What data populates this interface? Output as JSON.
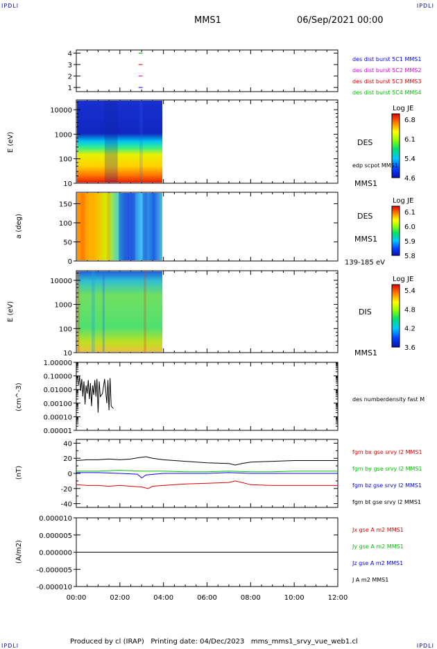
{
  "header": {
    "corner_tl": "IPDLI",
    "corner_tr": "IPDLI",
    "corner_bl": "IPDLI",
    "corner_br": "IPDLI",
    "spacecraft": "MMS1",
    "datetime": "06/Sep/2021 00:00"
  },
  "footer": {
    "produced": "Produced by cl (IRAP)",
    "printed": "Printing date: 04/Dec/2023",
    "file": "mms_mms1_srvy_vue_web1.cl"
  },
  "colors": {
    "blue": "#0000ff",
    "magenta": "#e000e0",
    "red": "#e00000",
    "green": "#00c000",
    "black": "#000000"
  },
  "chart_data": [
    {
      "type": "scatter",
      "panel": "availability",
      "y_ticks": [
        "4",
        "3",
        "2",
        "1"
      ],
      "legend": [
        {
          "label": "des dist burst 5C1 MMS1",
          "color": "#0000ff"
        },
        {
          "label": "des dist burst 5C2 MMS2",
          "color": "#e000e0"
        },
        {
          "label": "des dist burst 5C3 MMS3",
          "color": "#e00000"
        },
        {
          "label": "des dist burst 5C4 MMS4",
          "color": "#00c000"
        }
      ],
      "marks": [
        {
          "t": 2.95,
          "level": 1,
          "color": "#0000ff"
        },
        {
          "t": 2.95,
          "level": 2,
          "color": "#e000e0"
        },
        {
          "t": 2.95,
          "level": 3,
          "color": "#e00000"
        },
        {
          "t": 2.95,
          "level": 4,
          "color": "#00c000"
        }
      ]
    },
    {
      "type": "heatmap",
      "panel": "des-energy",
      "ylabel": "E (eV)",
      "y_scale": "log",
      "ylim": [
        10,
        25000
      ],
      "y_ticks": [
        "10000",
        "1000",
        "100",
        "10"
      ],
      "data_xlim": [
        0,
        3.95
      ],
      "label": "DES",
      "sublabel": "edp scpot MMS1",
      "instrument": "MMS1",
      "colorbar": {
        "title": "Log JE",
        "ticks": [
          "6.8",
          "6.1",
          "5.4",
          "4.6"
        ]
      }
    },
    {
      "type": "heatmap",
      "panel": "des-pitch",
      "ylabel": "a (deg)",
      "ylim": [
        0,
        180
      ],
      "y_ticks": [
        "150",
        "100",
        "50",
        "0"
      ],
      "data_xlim": [
        0,
        3.95
      ],
      "label": "DES",
      "instrument": "MMS1",
      "energy_range": "139-185 eV",
      "colorbar": {
        "title": "Log JE",
        "ticks": [
          "6.1",
          "6.0",
          "5.9",
          "5.8"
        ]
      }
    },
    {
      "type": "heatmap",
      "panel": "dis-energy",
      "ylabel": "E (eV)",
      "y_scale": "log",
      "ylim": [
        10,
        25000
      ],
      "y_ticks": [
        "10000",
        "1000",
        "100",
        "10"
      ],
      "data_xlim": [
        0,
        3.95
      ],
      "label": "DIS",
      "instrument": "MMS1",
      "colorbar": {
        "title": "Log JE",
        "ticks": [
          "5.4",
          "4.8",
          "4.2",
          "3.6"
        ]
      }
    },
    {
      "type": "line",
      "panel": "density",
      "ylabel": "(cm^-3)",
      "y_scale": "log",
      "ylim": [
        1e-05,
        1
      ],
      "y_ticks": [
        "1.00000",
        "0.10000",
        "0.01000",
        "0.00100",
        "0.00010",
        "0.00001"
      ],
      "series": [
        {
          "name": "des numberdensity fast M",
          "color": "#000000",
          "x": [
            0.1,
            0.15,
            0.2,
            0.25,
            0.3,
            0.35,
            0.4,
            0.45,
            0.5,
            0.55,
            0.6,
            0.65,
            0.7,
            0.75,
            0.8,
            0.85,
            0.9,
            0.95,
            1.0,
            1.05,
            1.1,
            1.2,
            1.3,
            1.4,
            1.45,
            1.5,
            1.55,
            1.6,
            1.7
          ],
          "y": [
            0.02,
            0.1,
            0.008,
            0.06,
            0.003,
            0.04,
            0.0008,
            0.02,
            0.005,
            0.05,
            0.002,
            0.03,
            0.0006,
            0.02,
            0.004,
            0.05,
            0.003,
            0.06,
            0.0002,
            0.04,
            0.003,
            0.005,
            0.06,
            0.001,
            0.05,
            0.0003,
            0.07,
            0.0006,
            0.0004
          ]
        }
      ]
    },
    {
      "type": "line",
      "panel": "magnetic-field",
      "ylabel": "(nT)",
      "ylim": [
        -45,
        45
      ],
      "y_ticks": [
        "40",
        "20",
        "0",
        "-20",
        "-40"
      ],
      "series": [
        {
          "name": "fgm bx gse srvy l2 MMS1",
          "color": "#e00000",
          "x": [
            0,
            0.5,
            1,
            1.5,
            2,
            2.5,
            3,
            3.3,
            3.5,
            4,
            5,
            6,
            7,
            7.3,
            7.6,
            8,
            9,
            10,
            11,
            12
          ],
          "y": [
            -15,
            -16,
            -16,
            -17,
            -16,
            -17,
            -18,
            -20,
            -17,
            -16,
            -14,
            -13,
            -12,
            -10,
            -12,
            -15,
            -16,
            -16,
            -16,
            -16
          ]
        },
        {
          "name": "fgm by gse srvy l2 MMS1",
          "color": "#00c000",
          "x": [
            0,
            1,
            2,
            3,
            4,
            5,
            6,
            7,
            8,
            9,
            10,
            11,
            12
          ],
          "y": [
            3,
            3,
            4,
            3,
            3,
            2,
            2,
            3,
            2,
            2,
            3,
            3,
            3
          ]
        },
        {
          "name": "fgm bz gse srvy l2 MMS1",
          "color": "#0000ff",
          "x": [
            0,
            1,
            2,
            2.8,
            3,
            3.2,
            4,
            5,
            6,
            7,
            8,
            9,
            10,
            11,
            12
          ],
          "y": [
            1,
            1,
            0,
            -1,
            -6,
            -2,
            0,
            0,
            0,
            1,
            0,
            0,
            0,
            0,
            0
          ]
        },
        {
          "name": "fgm bt gse srvy l2 MMS1",
          "color": "#000000",
          "x": [
            0,
            0.5,
            1,
            1.5,
            2,
            2.5,
            2.9,
            3.2,
            3.5,
            4,
            5,
            6,
            7,
            7.3,
            7.6,
            8,
            9,
            10,
            11,
            12
          ],
          "y": [
            17,
            18,
            18,
            19,
            18,
            19,
            21,
            22,
            20,
            18,
            16,
            14,
            13,
            11,
            13,
            15,
            16,
            17,
            17,
            17
          ]
        }
      ]
    },
    {
      "type": "line",
      "panel": "current",
      "ylabel": "(A/m2)",
      "ylim": [
        -1e-05,
        1e-05
      ],
      "y_ticks": [
        "0.000010",
        "0.000005",
        "0.000000",
        "-0.000005",
        "-0.000010"
      ],
      "x_ticks": [
        "00:00",
        "02:00",
        "04:00",
        "06:00",
        "08:00",
        "10:00",
        "12:00"
      ],
      "xlim": [
        0,
        12
      ],
      "series": [
        {
          "name": "Jx gse A m2 MMS1",
          "color": "#e00000"
        },
        {
          "name": "Jy gse A m2 MMS1",
          "color": "#00c000"
        },
        {
          "name": "Jz gse A m2 MMS1",
          "color": "#0000ff"
        },
        {
          "name": "J A m2 MMS1",
          "color": "#000000",
          "x": [
            0,
            12
          ],
          "y": [
            0,
            0
          ]
        }
      ]
    }
  ]
}
